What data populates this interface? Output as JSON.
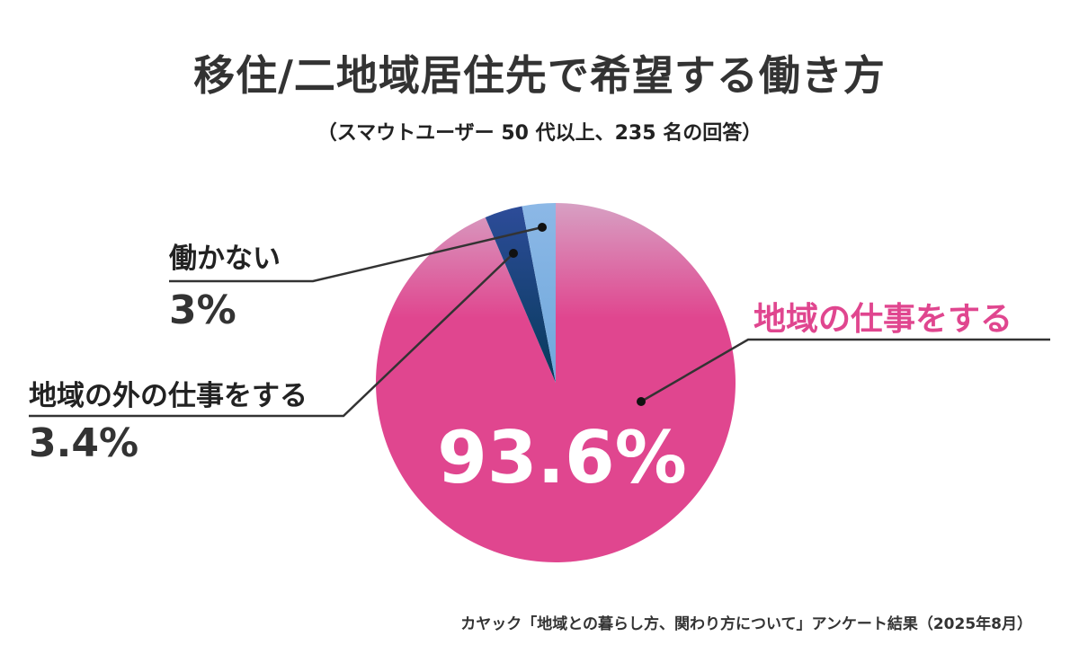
{
  "title": "移住/二地域居住先で希望する働き方",
  "subtitle": "（スマウトユーザー 50 代以上、235 名の回答）",
  "source": "カヤック「地域との暮らし方、関わり方について」アンケート結果（2025年8月）",
  "chart_data": {
    "type": "pie",
    "categories": [
      "地域の仕事をする",
      "地域の外の仕事をする",
      "働かない"
    ],
    "values": [
      93.6,
      3.4,
      3.0
    ],
    "value_labels": [
      "93.6%",
      "3.4%",
      "3%"
    ],
    "colors": [
      "#e0468f",
      "#1b4f8f",
      "#7aaede"
    ]
  }
}
